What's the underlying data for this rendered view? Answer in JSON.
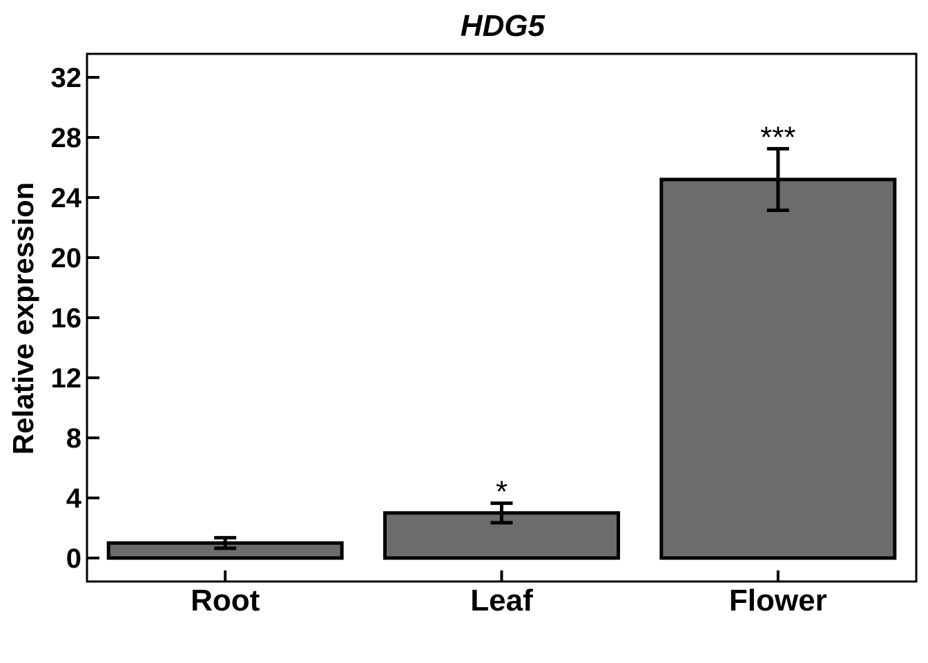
{
  "chart_data": {
    "type": "bar",
    "title": "HDG5",
    "xlabel": "",
    "ylabel": "Relative expression",
    "categories": [
      "Root",
      "Leaf",
      "Flower"
    ],
    "values": [
      1.0,
      3.0,
      25.2
    ],
    "errors": [
      0.35,
      0.65,
      2.05
    ],
    "significance": [
      "",
      "*",
      "***"
    ],
    "ylim": [
      -1.5,
      33.5
    ],
    "yticks": [
      0,
      4,
      8,
      12,
      16,
      20,
      24,
      28,
      32
    ],
    "grid": false,
    "legend": "none",
    "colors": {
      "bar_fill": "#6d6c6a",
      "bar_stroke": "#000000",
      "axis": "#000000"
    }
  }
}
